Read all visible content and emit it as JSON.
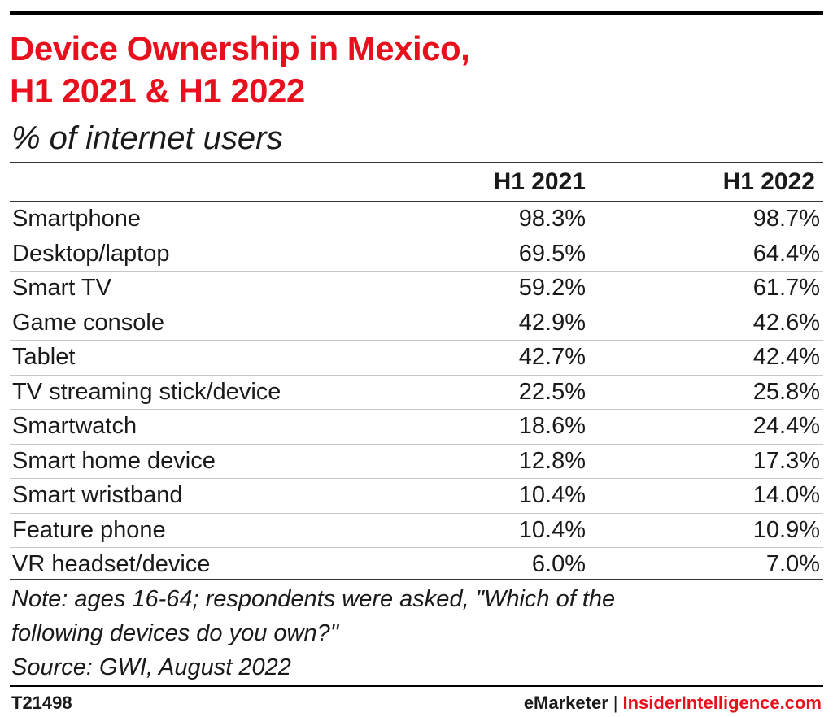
{
  "title_line1": "Device Ownership in Mexico,",
  "title_line2": "H1 2021 & H1 2022",
  "subtitle": "% of internet users",
  "chart_data": {
    "type": "table",
    "columns": [
      "H1 2021",
      "H1 2022"
    ],
    "rows": [
      {
        "label": "Smartphone",
        "values": [
          "98.3%",
          "98.7%"
        ]
      },
      {
        "label": "Desktop/laptop",
        "values": [
          "69.5%",
          "64.4%"
        ]
      },
      {
        "label": "Smart TV",
        "values": [
          "59.2%",
          "61.7%"
        ]
      },
      {
        "label": "Game console",
        "values": [
          "42.9%",
          "42.6%"
        ]
      },
      {
        "label": "Tablet",
        "values": [
          "42.7%",
          "42.4%"
        ]
      },
      {
        "label": "TV streaming stick/device",
        "values": [
          "22.5%",
          "25.8%"
        ]
      },
      {
        "label": "Smartwatch",
        "values": [
          "18.6%",
          "24.4%"
        ]
      },
      {
        "label": "Smart home device",
        "values": [
          "12.8%",
          "17.3%"
        ]
      },
      {
        "label": "Smart wristband",
        "values": [
          "10.4%",
          "14.0%"
        ]
      },
      {
        "label": "Feature phone",
        "values": [
          "10.4%",
          "10.9%"
        ]
      },
      {
        "label": "VR headset/device",
        "values": [
          "6.0%",
          "7.0%"
        ]
      }
    ]
  },
  "note_line1": "Note: ages 16-64; respondents were asked, \"Which of the",
  "note_line2": "following devices do you own?\"",
  "source": "Source: GWI, August 2022",
  "footer": {
    "chart_id": "T21498",
    "brand_emarketer": "eMarketer",
    "separator": "|",
    "brand_ii": "InsiderIntelligence.com"
  },
  "colors": {
    "accent": "#e8101d",
    "text": "#1a1a1a"
  }
}
